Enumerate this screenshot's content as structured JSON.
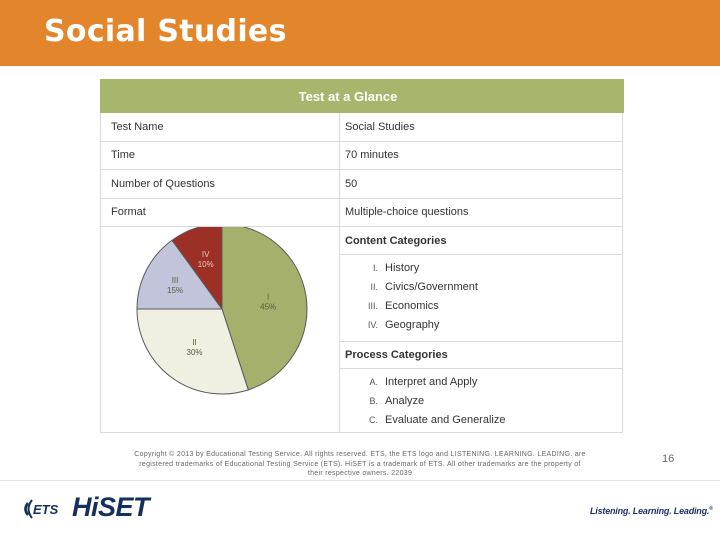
{
  "header": {
    "title": "Social Studies"
  },
  "table": {
    "title": "Test at a Glance",
    "rows": [
      {
        "label": "Test Name",
        "value": "Social Studies"
      },
      {
        "label": "Time",
        "value": "70 minutes"
      },
      {
        "label": "Number of Questions",
        "value": "50"
      },
      {
        "label": "Format",
        "value": "Multiple-choice questions"
      }
    ],
    "content_categories": {
      "heading": "Content Categories",
      "items": [
        {
          "num": "I.",
          "label": "History"
        },
        {
          "num": "II.",
          "label": "Civics/Government"
        },
        {
          "num": "III.",
          "label": "Economics"
        },
        {
          "num": "IV.",
          "label": "Geography"
        }
      ]
    },
    "process_categories": {
      "heading": "Process Categories",
      "items": [
        {
          "num": "A.",
          "label": "Interpret and Apply"
        },
        {
          "num": "B.",
          "label": "Analyze"
        },
        {
          "num": "C.",
          "label": "Evaluate and Generalize"
        }
      ]
    }
  },
  "chart_data": {
    "type": "pie",
    "title": "",
    "slices": [
      {
        "label": "I",
        "value": 45,
        "value_label": "45%",
        "color": "#a5b06c"
      },
      {
        "label": "II",
        "value": 30,
        "value_label": "30%",
        "color": "#eff0e2"
      },
      {
        "label": "III",
        "value": 15,
        "value_label": "15%",
        "color": "#c2c4dc"
      },
      {
        "label": "IV",
        "value": 10,
        "value_label": "10%",
        "color": "#9c2f26"
      }
    ]
  },
  "footer": {
    "copyright_lines": [
      "Copyright © 2013 by Educational Testing Service. All rights reserved. ETS, the ETS logo and LISTENING. LEARNING. LEADING. are",
      "registered trademarks of Educational Testing Service (ETS). HiSET is a trademark of ETS. All other trademarks are the property of",
      "their respective owners. 22039"
    ],
    "page_number": "16",
    "ets_logo_text": "ETS",
    "hiset_logo_text": "HiSET",
    "tagline": "Listening. Learning. Leading.",
    "tagline_mark": "®"
  },
  "colors": {
    "header_bg": "#e2852b",
    "table_title_bg": "#a6b66c",
    "brand_navy": "#16305e"
  }
}
